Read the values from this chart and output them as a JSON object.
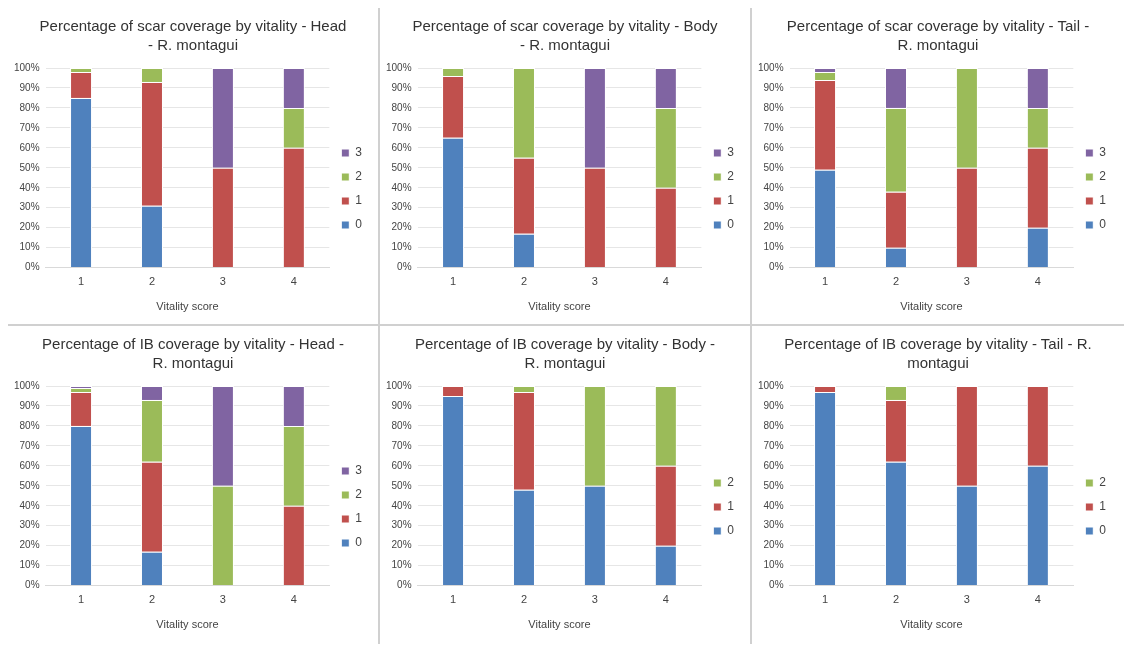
{
  "chart_data": [
    {
      "type": "bar",
      "title": "Percentage of scar coverage by vitality - Head - R. montagui",
      "xlabel": "Vitality score",
      "categories": [
        "1",
        "2",
        "3",
        "4"
      ],
      "stacked": true,
      "ylim": [
        0,
        100
      ],
      "yticks": [
        {
          "value": 0,
          "label": "0%"
        },
        {
          "value": 10,
          "label": "10%"
        },
        {
          "value": 20,
          "label": "20%"
        },
        {
          "value": 30,
          "label": "30%"
        },
        {
          "value": 40,
          "label": "40%"
        },
        {
          "value": 50,
          "label": "50%"
        },
        {
          "value": 60,
          "label": "60%"
        },
        {
          "value": 70,
          "label": "70%"
        },
        {
          "value": 80,
          "label": "80%"
        },
        {
          "value": 90,
          "label": "90%"
        },
        {
          "value": 100,
          "label": "100%"
        }
      ],
      "grid": "y",
      "legend": "right",
      "series": [
        {
          "name": "0",
          "color": "#4f81bd",
          "values": [
            85,
            31,
            0,
            0
          ]
        },
        {
          "name": "1",
          "color": "#c0504d",
          "values": [
            13,
            62,
            50,
            60
          ]
        },
        {
          "name": "2",
          "color": "#9bbb59",
          "values": [
            2,
            7,
            0,
            20
          ]
        },
        {
          "name": "3",
          "color": "#8064a2",
          "values": [
            0,
            0,
            50,
            20
          ]
        }
      ]
    },
    {
      "type": "bar",
      "title": "Percentage of scar coverage by vitality - Body - R. montagui",
      "xlabel": "Vitality score",
      "categories": [
        "1",
        "2",
        "3",
        "4"
      ],
      "stacked": true,
      "ylim": [
        0,
        100
      ],
      "yticks": [
        {
          "value": 0,
          "label": "0%"
        },
        {
          "value": 10,
          "label": "10%"
        },
        {
          "value": 20,
          "label": "20%"
        },
        {
          "value": 30,
          "label": "30%"
        },
        {
          "value": 40,
          "label": "40%"
        },
        {
          "value": 50,
          "label": "50%"
        },
        {
          "value": 60,
          "label": "60%"
        },
        {
          "value": 70,
          "label": "70%"
        },
        {
          "value": 80,
          "label": "80%"
        },
        {
          "value": 90,
          "label": "90%"
        },
        {
          "value": 100,
          "label": "100%"
        }
      ],
      "grid": "y",
      "legend": "right",
      "series": [
        {
          "name": "0",
          "color": "#4f81bd",
          "values": [
            65,
            17,
            0,
            0
          ]
        },
        {
          "name": "1",
          "color": "#c0504d",
          "values": [
            31,
            38,
            50,
            40
          ]
        },
        {
          "name": "2",
          "color": "#9bbb59",
          "values": [
            4,
            45,
            0,
            40
          ]
        },
        {
          "name": "3",
          "color": "#8064a2",
          "values": [
            0,
            0,
            50,
            20
          ]
        }
      ]
    },
    {
      "type": "bar",
      "title": "Percentage of scar coverage by vitality - Tail - R. montagui",
      "xlabel": "Vitality score",
      "categories": [
        "1",
        "2",
        "3",
        "4"
      ],
      "stacked": true,
      "ylim": [
        0,
        100
      ],
      "yticks": [
        {
          "value": 0,
          "label": "0%"
        },
        {
          "value": 10,
          "label": "10%"
        },
        {
          "value": 20,
          "label": "20%"
        },
        {
          "value": 30,
          "label": "30%"
        },
        {
          "value": 40,
          "label": "40%"
        },
        {
          "value": 50,
          "label": "50%"
        },
        {
          "value": 60,
          "label": "60%"
        },
        {
          "value": 70,
          "label": "70%"
        },
        {
          "value": 80,
          "label": "80%"
        },
        {
          "value": 90,
          "label": "90%"
        },
        {
          "value": 100,
          "label": "100%"
        }
      ],
      "grid": "y",
      "legend": "right",
      "series": [
        {
          "name": "0",
          "color": "#4f81bd",
          "values": [
            49,
            10,
            0,
            20
          ]
        },
        {
          "name": "1",
          "color": "#c0504d",
          "values": [
            45,
            28,
            50,
            40
          ]
        },
        {
          "name": "2",
          "color": "#9bbb59",
          "values": [
            4,
            42,
            50,
            20
          ]
        },
        {
          "name": "3",
          "color": "#8064a2",
          "values": [
            2,
            20,
            0,
            20
          ]
        }
      ]
    },
    {
      "type": "bar",
      "title": "Percentage of IB coverage by vitality - Head - R. montagui",
      "xlabel": "Vitality score",
      "categories": [
        "1",
        "2",
        "3",
        "4"
      ],
      "stacked": true,
      "ylim": [
        0,
        100
      ],
      "yticks": [
        {
          "value": 0,
          "label": "0%"
        },
        {
          "value": 10,
          "label": "10%"
        },
        {
          "value": 20,
          "label": "20%"
        },
        {
          "value": 30,
          "label": "30%"
        },
        {
          "value": 40,
          "label": "40%"
        },
        {
          "value": 50,
          "label": "50%"
        },
        {
          "value": 60,
          "label": "60%"
        },
        {
          "value": 70,
          "label": "70%"
        },
        {
          "value": 80,
          "label": "80%"
        },
        {
          "value": 90,
          "label": "90%"
        },
        {
          "value": 100,
          "label": "100%"
        }
      ],
      "grid": "y",
      "legend": "right",
      "series": [
        {
          "name": "0",
          "color": "#4f81bd",
          "values": [
            80,
            17,
            0,
            0
          ]
        },
        {
          "name": "1",
          "color": "#c0504d",
          "values": [
            17,
            45,
            0,
            40
          ]
        },
        {
          "name": "2",
          "color": "#9bbb59",
          "values": [
            2,
            31,
            50,
            40
          ]
        },
        {
          "name": "3",
          "color": "#8064a2",
          "values": [
            1,
            7,
            50,
            20
          ]
        }
      ]
    },
    {
      "type": "bar",
      "title": "Percentage of IB coverage by vitality - Body - R. montagui",
      "xlabel": "Vitality score",
      "categories": [
        "1",
        "2",
        "3",
        "4"
      ],
      "stacked": true,
      "ylim": [
        0,
        100
      ],
      "yticks": [
        {
          "value": 0,
          "label": "0%"
        },
        {
          "value": 10,
          "label": "10%"
        },
        {
          "value": 20,
          "label": "20%"
        },
        {
          "value": 30,
          "label": "30%"
        },
        {
          "value": 40,
          "label": "40%"
        },
        {
          "value": 50,
          "label": "50%"
        },
        {
          "value": 60,
          "label": "60%"
        },
        {
          "value": 70,
          "label": "70%"
        },
        {
          "value": 80,
          "label": "80%"
        },
        {
          "value": 90,
          "label": "90%"
        },
        {
          "value": 100,
          "label": "100%"
        }
      ],
      "grid": "y",
      "legend": "right",
      "series": [
        {
          "name": "0",
          "color": "#4f81bd",
          "values": [
            95,
            48,
            50,
            20
          ]
        },
        {
          "name": "1",
          "color": "#c0504d",
          "values": [
            5,
            49,
            0,
            40
          ]
        },
        {
          "name": "2",
          "color": "#9bbb59",
          "values": [
            0,
            3,
            50,
            40
          ]
        }
      ]
    },
    {
      "type": "bar",
      "title": "Percentage of IB coverage by vitality - Tail - R. montagui",
      "xlabel": "Vitality score",
      "categories": [
        "1",
        "2",
        "3",
        "4"
      ],
      "stacked": true,
      "ylim": [
        0,
        100
      ],
      "yticks": [
        {
          "value": 0,
          "label": "0%"
        },
        {
          "value": 10,
          "label": "10%"
        },
        {
          "value": 20,
          "label": "20%"
        },
        {
          "value": 30,
          "label": "30%"
        },
        {
          "value": 40,
          "label": "40%"
        },
        {
          "value": 50,
          "label": "50%"
        },
        {
          "value": 60,
          "label": "60%"
        },
        {
          "value": 70,
          "label": "70%"
        },
        {
          "value": 80,
          "label": "80%"
        },
        {
          "value": 90,
          "label": "90%"
        },
        {
          "value": 100,
          "label": "100%"
        }
      ],
      "grid": "y",
      "legend": "right",
      "series": [
        {
          "name": "0",
          "color": "#4f81bd",
          "values": [
            97,
            62,
            50,
            60
          ]
        },
        {
          "name": "1",
          "color": "#c0504d",
          "values": [
            3,
            31,
            50,
            40
          ]
        },
        {
          "name": "2",
          "color": "#9bbb59",
          "values": [
            0,
            7,
            0,
            0
          ]
        }
      ]
    }
  ]
}
